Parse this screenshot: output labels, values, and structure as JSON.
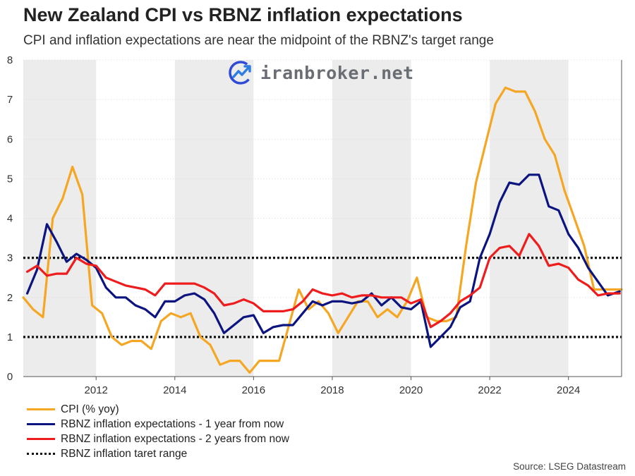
{
  "title": "New Zealand CPI vs RBNZ inflation expectations",
  "subtitle": "CPI and inflation expectations are near the midpoint of the RBNZ's target range",
  "source": "Source: LSEG Datastream",
  "watermark": "iranbroker.net",
  "colors": {
    "cpi": "#f5a623",
    "one_year": "#0c1480",
    "two_year": "#ee1c1c",
    "target": "#111111",
    "band": "#ececec",
    "grid": "#d9d9d9"
  },
  "chart_data": {
    "type": "line",
    "title": "New Zealand CPI vs RBNZ inflation expectations",
    "subtitle": "CPI and inflation expectations are near the midpoint of the RBNZ's target range",
    "xlim": [
      2010.15,
      2025.35
    ],
    "ylim": [
      0,
      8
    ],
    "yticks": [
      0,
      1,
      2,
      3,
      4,
      5,
      6,
      7,
      8
    ],
    "xticks": [
      2012,
      2014,
      2016,
      2018,
      2020,
      2022,
      2024
    ],
    "shaded_bands": [
      [
        2010.15,
        2012
      ],
      [
        2014,
        2016
      ],
      [
        2018,
        2020
      ],
      [
        2022,
        2024
      ]
    ],
    "grid": "horizontal dotted",
    "legend_position": "bottom-left",
    "series": [
      {
        "name": "CPI (% yoy)",
        "color": "#f5a623",
        "points": [
          [
            2010.15,
            2.0
          ],
          [
            2010.4,
            1.7
          ],
          [
            2010.65,
            1.5
          ],
          [
            2010.9,
            4.0
          ],
          [
            2011.15,
            4.5
          ],
          [
            2011.4,
            5.3
          ],
          [
            2011.65,
            4.6
          ],
          [
            2011.9,
            1.8
          ],
          [
            2012.15,
            1.6
          ],
          [
            2012.4,
            1.0
          ],
          [
            2012.65,
            0.8
          ],
          [
            2012.9,
            0.9
          ],
          [
            2013.15,
            0.9
          ],
          [
            2013.4,
            0.7
          ],
          [
            2013.65,
            1.4
          ],
          [
            2013.9,
            1.6
          ],
          [
            2014.15,
            1.5
          ],
          [
            2014.4,
            1.6
          ],
          [
            2014.65,
            1.0
          ],
          [
            2014.9,
            0.8
          ],
          [
            2015.15,
            0.3
          ],
          [
            2015.4,
            0.4
          ],
          [
            2015.65,
            0.4
          ],
          [
            2015.9,
            0.1
          ],
          [
            2016.15,
            0.4
          ],
          [
            2016.4,
            0.4
          ],
          [
            2016.65,
            0.4
          ],
          [
            2016.9,
            1.3
          ],
          [
            2017.15,
            2.2
          ],
          [
            2017.4,
            1.7
          ],
          [
            2017.65,
            1.9
          ],
          [
            2017.9,
            1.6
          ],
          [
            2018.15,
            1.1
          ],
          [
            2018.4,
            1.5
          ],
          [
            2018.65,
            1.9
          ],
          [
            2018.9,
            1.9
          ],
          [
            2019.15,
            1.5
          ],
          [
            2019.4,
            1.7
          ],
          [
            2019.65,
            1.5
          ],
          [
            2019.9,
            1.9
          ],
          [
            2020.15,
            2.5
          ],
          [
            2020.4,
            1.5
          ],
          [
            2020.65,
            1.4
          ],
          [
            2020.9,
            1.4
          ],
          [
            2021.15,
            1.5
          ],
          [
            2021.4,
            3.3
          ],
          [
            2021.65,
            4.9
          ],
          [
            2021.9,
            5.9
          ],
          [
            2022.15,
            6.9
          ],
          [
            2022.4,
            7.3
          ],
          [
            2022.65,
            7.2
          ],
          [
            2022.9,
            7.2
          ],
          [
            2023.15,
            6.7
          ],
          [
            2023.4,
            6.0
          ],
          [
            2023.65,
            5.6
          ],
          [
            2023.9,
            4.7
          ],
          [
            2024.15,
            4.0
          ],
          [
            2024.4,
            3.3
          ],
          [
            2024.65,
            2.2
          ],
          [
            2024.9,
            2.2
          ],
          [
            2025.15,
            2.2
          ],
          [
            2025.35,
            2.2
          ]
        ]
      },
      {
        "name": "RBNZ inflation expectations - 1 year from now",
        "color": "#0c1480",
        "points": [
          [
            2010.25,
            2.1
          ],
          [
            2010.5,
            2.7
          ],
          [
            2010.75,
            3.85
          ],
          [
            2011.0,
            3.4
          ],
          [
            2011.25,
            2.9
          ],
          [
            2011.5,
            3.1
          ],
          [
            2011.75,
            2.95
          ],
          [
            2012.0,
            2.75
          ],
          [
            2012.25,
            2.25
          ],
          [
            2012.5,
            2.0
          ],
          [
            2012.75,
            2.0
          ],
          [
            2013.0,
            1.8
          ],
          [
            2013.25,
            1.7
          ],
          [
            2013.5,
            1.5
          ],
          [
            2013.75,
            1.9
          ],
          [
            2014.0,
            1.9
          ],
          [
            2014.25,
            2.05
          ],
          [
            2014.5,
            2.1
          ],
          [
            2014.75,
            1.95
          ],
          [
            2015.0,
            1.6
          ],
          [
            2015.25,
            1.1
          ],
          [
            2015.5,
            1.3
          ],
          [
            2015.75,
            1.5
          ],
          [
            2016.0,
            1.55
          ],
          [
            2016.25,
            1.1
          ],
          [
            2016.5,
            1.25
          ],
          [
            2016.75,
            1.3
          ],
          [
            2017.0,
            1.3
          ],
          [
            2017.25,
            1.6
          ],
          [
            2017.5,
            1.9
          ],
          [
            2017.75,
            1.8
          ],
          [
            2018.0,
            1.9
          ],
          [
            2018.25,
            1.9
          ],
          [
            2018.5,
            1.85
          ],
          [
            2018.75,
            1.9
          ],
          [
            2019.0,
            2.1
          ],
          [
            2019.25,
            1.8
          ],
          [
            2019.5,
            2.0
          ],
          [
            2019.75,
            1.75
          ],
          [
            2020.0,
            1.7
          ],
          [
            2020.25,
            1.9
          ],
          [
            2020.5,
            0.75
          ],
          [
            2020.75,
            1.0
          ],
          [
            2021.0,
            1.25
          ],
          [
            2021.25,
            1.75
          ],
          [
            2021.5,
            1.9
          ],
          [
            2021.75,
            3.0
          ],
          [
            2022.0,
            3.6
          ],
          [
            2022.25,
            4.4
          ],
          [
            2022.5,
            4.9
          ],
          [
            2022.75,
            4.85
          ],
          [
            2023.0,
            5.1
          ],
          [
            2023.25,
            5.1
          ],
          [
            2023.5,
            4.3
          ],
          [
            2023.75,
            4.2
          ],
          [
            2024.0,
            3.6
          ],
          [
            2024.25,
            3.25
          ],
          [
            2024.5,
            2.75
          ],
          [
            2024.75,
            2.4
          ],
          [
            2025.0,
            2.05
          ],
          [
            2025.3,
            2.15
          ]
        ]
      },
      {
        "name": "RBNZ inflation expectations - 2 years from now",
        "color": "#ee1c1c",
        "points": [
          [
            2010.25,
            2.65
          ],
          [
            2010.5,
            2.8
          ],
          [
            2010.75,
            2.55
          ],
          [
            2011.0,
            2.6
          ],
          [
            2011.25,
            2.6
          ],
          [
            2011.5,
            3.0
          ],
          [
            2011.75,
            2.85
          ],
          [
            2012.0,
            2.8
          ],
          [
            2012.25,
            2.5
          ],
          [
            2012.5,
            2.4
          ],
          [
            2012.75,
            2.3
          ],
          [
            2013.0,
            2.25
          ],
          [
            2013.25,
            2.2
          ],
          [
            2013.5,
            2.05
          ],
          [
            2013.75,
            2.35
          ],
          [
            2014.0,
            2.35
          ],
          [
            2014.25,
            2.35
          ],
          [
            2014.5,
            2.35
          ],
          [
            2014.75,
            2.25
          ],
          [
            2015.0,
            2.1
          ],
          [
            2015.25,
            1.8
          ],
          [
            2015.5,
            1.85
          ],
          [
            2015.75,
            1.95
          ],
          [
            2016.0,
            1.85
          ],
          [
            2016.25,
            1.65
          ],
          [
            2016.5,
            1.65
          ],
          [
            2016.75,
            1.65
          ],
          [
            2017.0,
            1.7
          ],
          [
            2017.25,
            1.9
          ],
          [
            2017.5,
            2.2
          ],
          [
            2017.75,
            2.1
          ],
          [
            2018.0,
            2.05
          ],
          [
            2018.25,
            2.1
          ],
          [
            2018.5,
            2.0
          ],
          [
            2018.75,
            2.05
          ],
          [
            2019.0,
            2.05
          ],
          [
            2019.25,
            2.0
          ],
          [
            2019.5,
            2.0
          ],
          [
            2019.75,
            2.0
          ],
          [
            2020.0,
            1.85
          ],
          [
            2020.25,
            1.95
          ],
          [
            2020.5,
            1.25
          ],
          [
            2020.75,
            1.4
          ],
          [
            2021.0,
            1.6
          ],
          [
            2021.25,
            1.9
          ],
          [
            2021.5,
            2.05
          ],
          [
            2021.75,
            2.25
          ],
          [
            2022.0,
            3.0
          ],
          [
            2022.25,
            3.25
          ],
          [
            2022.5,
            3.3
          ],
          [
            2022.75,
            3.05
          ],
          [
            2023.0,
            3.6
          ],
          [
            2023.25,
            3.3
          ],
          [
            2023.5,
            2.8
          ],
          [
            2023.75,
            2.85
          ],
          [
            2024.0,
            2.75
          ],
          [
            2024.25,
            2.45
          ],
          [
            2024.5,
            2.3
          ],
          [
            2024.75,
            2.05
          ],
          [
            2025.0,
            2.1
          ],
          [
            2025.3,
            2.1
          ]
        ]
      },
      {
        "name": "RBNZ inflation taret range",
        "color": "#111111",
        "style": "dotted",
        "levels": [
          1,
          3
        ]
      }
    ]
  }
}
